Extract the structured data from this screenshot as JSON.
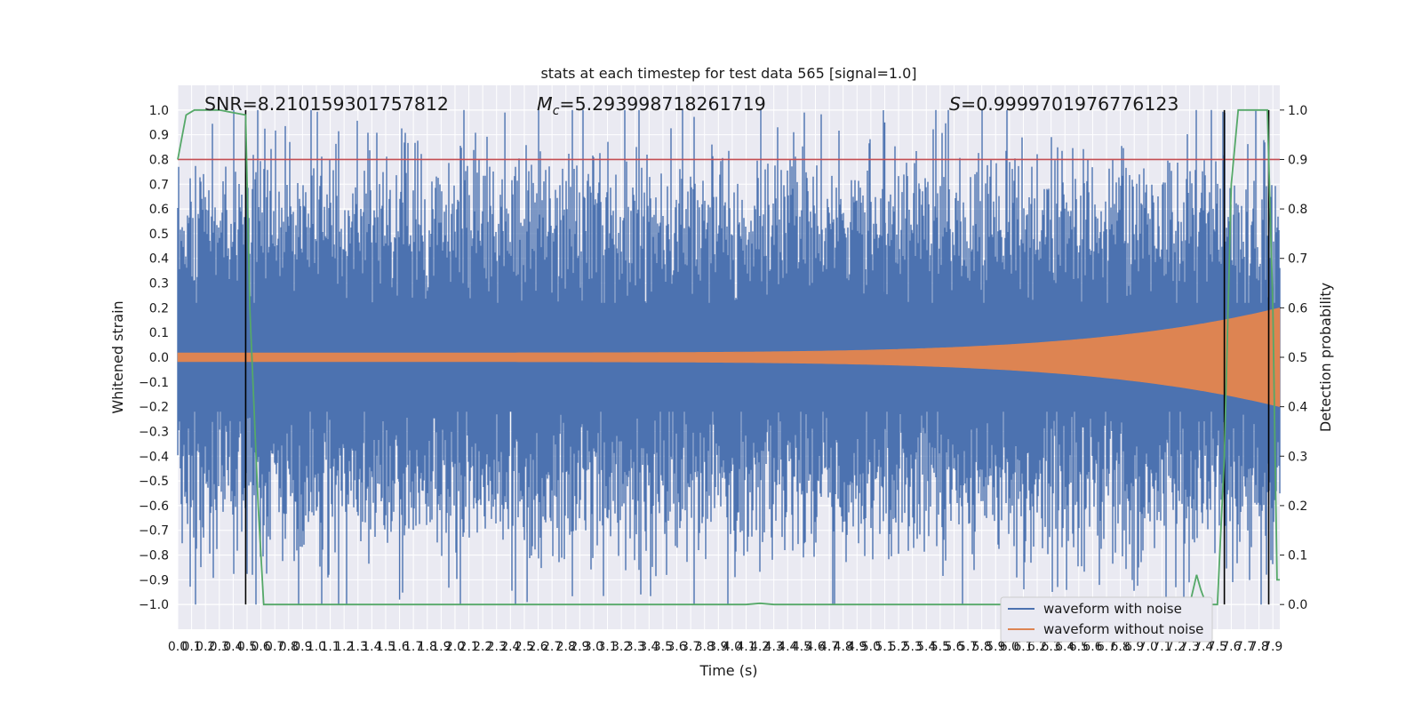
{
  "chart_data": {
    "type": "line",
    "title": "stats at each timestep for test data 565 [signal=1.0]",
    "xlabel": "Time (s)",
    "ylabel": "Whitened strain",
    "y2label": "Detection probability",
    "xlim": [
      0.0,
      7.95
    ],
    "ylim": [
      -1.1,
      1.1
    ],
    "y2lim": [
      -0.05,
      1.05
    ],
    "xticks": [
      "0.0",
      "0.1",
      "0.2",
      "0.3",
      "0.4",
      "0.5",
      "0.6",
      "0.7",
      "0.8",
      "0.9",
      "1.0",
      "1.1",
      "1.2",
      "1.3",
      "1.4",
      "1.5",
      "1.6",
      "1.7",
      "1.8",
      "1.9",
      "2.0",
      "2.1",
      "2.2",
      "2.3",
      "2.4",
      "2.5",
      "2.6",
      "2.7",
      "2.8",
      "2.9",
      "3.0",
      "3.1",
      "3.2",
      "3.3",
      "3.4",
      "3.5",
      "3.6",
      "3.7",
      "3.8",
      "3.9",
      "4.0",
      "4.1",
      "4.2",
      "4.3",
      "4.4",
      "4.5",
      "4.6",
      "4.7",
      "4.8",
      "4.9",
      "5.0",
      "5.1",
      "5.2",
      "5.3",
      "5.4",
      "5.5",
      "5.6",
      "5.7",
      "5.8",
      "5.9",
      "6.0",
      "6.1",
      "6.2",
      "6.3",
      "6.4",
      "6.5",
      "6.6",
      "6.7",
      "6.8",
      "6.9",
      "7.0",
      "7.1",
      "7.2",
      "7.3",
      "7.4",
      "7.5",
      "7.6",
      "7.7",
      "7.8",
      "7.9"
    ],
    "yticks": [
      "−1.0",
      "−0.9",
      "−0.8",
      "−0.7",
      "−0.6",
      "−0.5",
      "−0.4",
      "−0.3",
      "−0.2",
      "−0.1",
      "0.0",
      "0.1",
      "0.2",
      "0.3",
      "0.4",
      "0.5",
      "0.6",
      "0.7",
      "0.8",
      "0.9",
      "1.0"
    ],
    "y2ticks": [
      "0.0",
      "0.1",
      "0.2",
      "0.3",
      "0.4",
      "0.5",
      "0.6",
      "0.7",
      "0.8",
      "0.9",
      "1.0"
    ],
    "annotations": {
      "snr": "SNR=8.210159301757812",
      "mc_symbol": "M",
      "mc_subscript": "c",
      "mc_value": "=5.293998718261719",
      "s_symbol": "S",
      "s_value": "=0.9999701976776123"
    },
    "threshold": {
      "y2": 0.9,
      "color": "#c44e52"
    },
    "vertical_lines": {
      "x": [
        0.49,
        7.55,
        7.87
      ],
      "color": "#000000"
    },
    "series": [
      {
        "name": "waveform with noise",
        "color": "#4c72b0",
        "axis": "left",
        "envelope": "noise",
        "amplitude_range": [
          -1.0,
          1.0
        ],
        "peak_max": 0.99,
        "peak_min": -0.99
      },
      {
        "name": "waveform without noise",
        "color": "#dd8452",
        "axis": "left",
        "envelope": "chirp",
        "amplitude_start": 0.018,
        "amplitude_end": 0.2
      },
      {
        "name": "detection probability",
        "color": "#55a868",
        "axis": "right",
        "x": [
          0.0,
          0.06,
          0.12,
          0.3,
          0.49,
          0.52,
          0.58,
          0.62,
          0.7,
          4.1,
          4.2,
          4.3,
          4.4,
          6.8,
          7.3,
          7.35,
          7.38,
          7.42,
          7.5,
          7.55,
          7.6,
          7.65,
          7.8,
          7.86,
          7.9,
          7.93,
          7.95
        ],
        "y": [
          0.9,
          0.99,
          1.0,
          1.0,
          0.99,
          0.6,
          0.2,
          0.0,
          0.0,
          0.0,
          0.0025,
          0.0,
          0.0,
          0.0,
          0.0,
          0.06,
          0.03,
          0.0,
          0.0,
          0.3,
          0.85,
          1.0,
          1.0,
          1.0,
          0.6,
          0.05,
          0.05
        ]
      }
    ],
    "legend": {
      "placement": "lower right",
      "entries": [
        "waveform with noise",
        "waveform without noise"
      ]
    },
    "grid": true,
    "background": "#eaeaf2"
  }
}
